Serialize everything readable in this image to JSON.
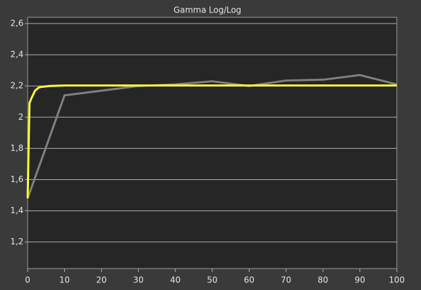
{
  "chart_data": {
    "type": "line",
    "title": "Gamma Log/Log",
    "xlim": [
      0,
      100
    ],
    "xticks": [
      0,
      10,
      20,
      30,
      40,
      50,
      60,
      70,
      80,
      90,
      100
    ],
    "ylim": [
      1.03,
      2.64
    ],
    "yticks": [
      {
        "value": 1.2,
        "label": "1,2"
      },
      {
        "value": 1.4,
        "label": "1,4"
      },
      {
        "value": 1.6,
        "label": "1,6"
      },
      {
        "value": 1.8,
        "label": "1,8"
      },
      2,
      {
        "value": 2.2,
        "label": "2,2"
      },
      {
        "value": 2.4,
        "label": "2,4"
      },
      {
        "value": 2.6,
        "label": "2,6"
      }
    ],
    "grid": true,
    "series": [
      {
        "color": "#808080",
        "x": [
          0,
          10,
          20,
          30,
          40,
          50,
          60,
          70,
          80,
          90,
          100
        ],
        "values": [
          1.48,
          2.14,
          2.17,
          2.2,
          2.21,
          2.23,
          2.2,
          2.235,
          2.24,
          2.27,
          2.21
        ]
      },
      {
        "color": "#ffff33",
        "x": [
          0,
          0.5,
          1,
          2,
          3,
          4,
          6,
          10,
          100
        ],
        "values": [
          1.48,
          2.09,
          2.12,
          2.17,
          2.19,
          2.195,
          2.2,
          2.203,
          2.203
        ]
      }
    ]
  }
}
